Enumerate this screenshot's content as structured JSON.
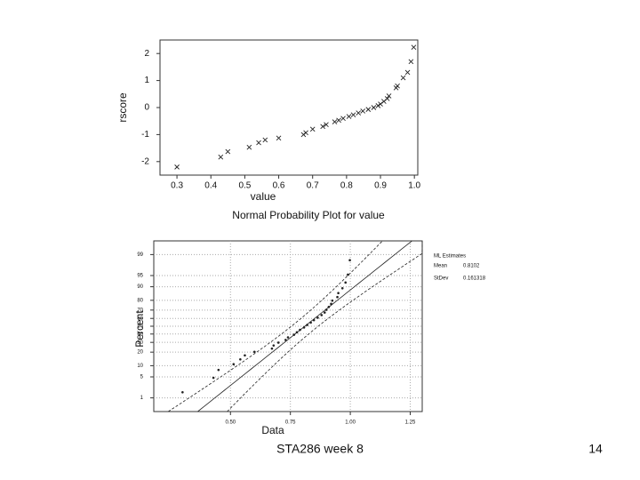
{
  "chart_data": [
    {
      "type": "scatter",
      "x_label": "value",
      "y_label": "rscore",
      "x": [
        0.3,
        0.429,
        0.45,
        0.513,
        0.541,
        0.56,
        0.6,
        0.673,
        0.68,
        0.7,
        0.73,
        0.74,
        0.765,
        0.777,
        0.79,
        0.807,
        0.82,
        0.835,
        0.848,
        0.864,
        0.88,
        0.893,
        0.9,
        0.91,
        0.92,
        0.925,
        0.946,
        0.95,
        0.967,
        0.98,
        0.99,
        0.998
      ],
      "values": [
        -2.2,
        -1.83,
        -1.63,
        -1.47,
        -1.3,
        -1.2,
        -1.13,
        -1.0,
        -0.93,
        -0.8,
        -0.7,
        -0.63,
        -0.53,
        -0.47,
        -0.4,
        -0.33,
        -0.27,
        -0.2,
        -0.13,
        -0.07,
        0,
        0.07,
        0.13,
        0.23,
        0.33,
        0.43,
        0.73,
        0.8,
        1.1,
        1.3,
        1.7,
        2.23
      ],
      "xlim": [
        0.25,
        1.01
      ],
      "ylim": [
        -2.5,
        2.5
      ],
      "xticks": [
        0.3,
        0.4,
        0.5,
        0.6,
        0.7,
        0.8,
        0.9,
        {
          "value": 1,
          "label": "1.0"
        }
      ],
      "yticks": [
        -2,
        -1,
        0,
        1,
        2
      ],
      "color": "#222"
    },
    {
      "type": "probability",
      "title": "Normal Probability Plot for value",
      "x_label": "Data",
      "y_label": "Percent",
      "x": [
        0.3,
        0.429,
        0.45,
        0.513,
        0.541,
        0.56,
        0.6,
        0.673,
        0.68,
        0.7,
        0.73,
        0.74,
        0.765,
        0.777,
        0.79,
        0.807,
        0.82,
        0.835,
        0.848,
        0.864,
        0.88,
        0.893,
        0.9,
        0.91,
        0.92,
        0.925,
        0.946,
        0.95,
        0.967,
        0.98,
        0.99,
        0.998
      ],
      "values": [
        1.6,
        4.7,
        7.8,
        10.9,
        14.1,
        17.2,
        20.3,
        23.4,
        26.6,
        29.7,
        32.8,
        35.9,
        39.1,
        42.2,
        45.3,
        48.4,
        51.6,
        54.7,
        57.8,
        60.9,
        64.1,
        67.2,
        70.3,
        73.4,
        76.6,
        79.7,
        82.8,
        85.9,
        89.1,
        92.2,
        95.3,
        98.4
      ],
      "xlim": [
        0.18,
        1.3
      ],
      "ylim": [
        0.28,
        99.72
      ],
      "yscale": "probability",
      "grid": true,
      "xticks": [
        {
          "value": 0.5,
          "label": "0.50"
        },
        {
          "value": 0.75,
          "label": "0.75"
        },
        {
          "value": 1,
          "label": "1.00"
        },
        {
          "value": 1.25,
          "label": "1.25"
        }
      ],
      "yticks": [
        1,
        5,
        10,
        20,
        30,
        40,
        50,
        60,
        70,
        80,
        90,
        95,
        99
      ],
      "color": "#222",
      "estimates": {
        "title": "ML Estimates",
        "mean_label": "Mean",
        "mean": 0.8102,
        "sd_label": "StDev",
        "sd": 0.161318
      }
    }
  ],
  "footer": {
    "text": "STA286 week 8",
    "page": "14"
  }
}
